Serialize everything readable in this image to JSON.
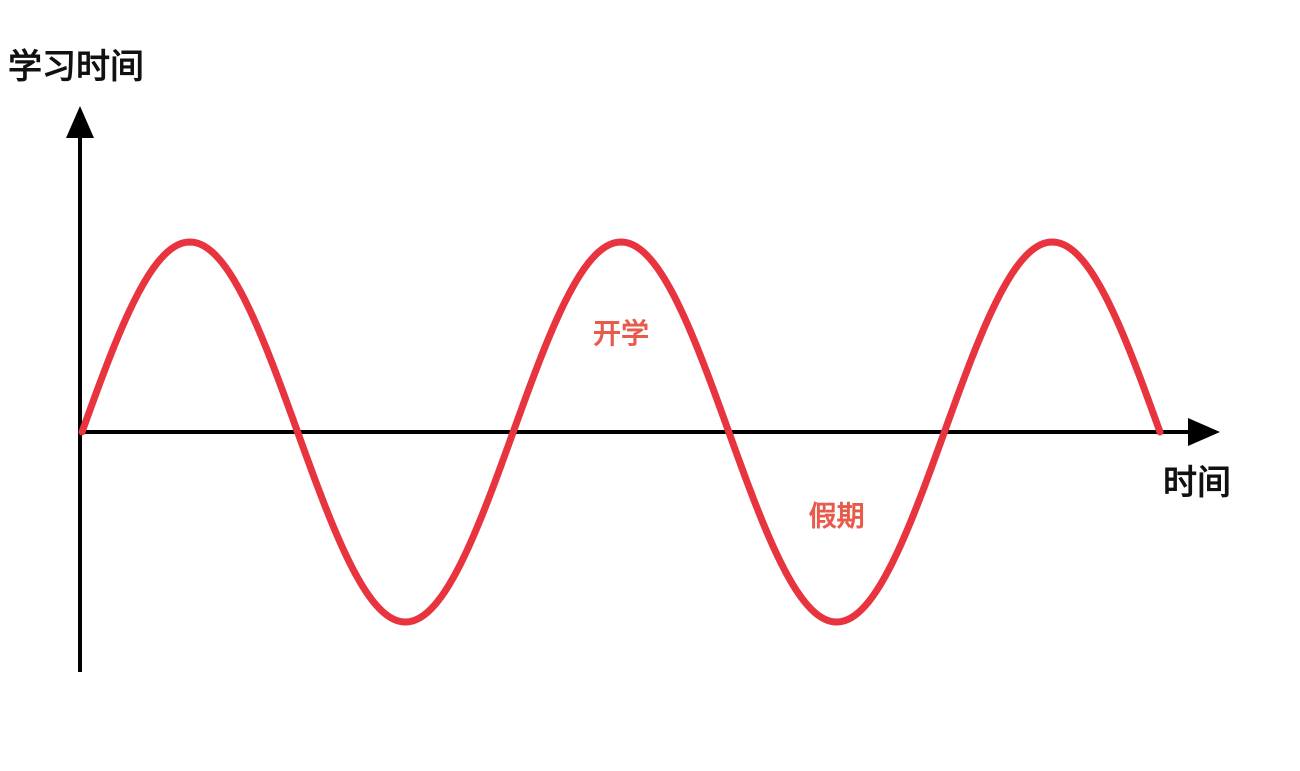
{
  "chart_data": {
    "type": "line",
    "ylabel": "学习时间",
    "xlabel": "时间",
    "grid": false,
    "legend": "none",
    "xlim": [
      0,
      2.5
    ],
    "ylim": [
      -1.15,
      1.2
    ],
    "series": [
      {
        "color": "#e8343f",
        "x": [
          0,
          0.25,
          0.5,
          0.75,
          1.0,
          1.25,
          1.5,
          1.75,
          2.0,
          2.25,
          2.5
        ],
        "y": [
          0,
          1,
          0,
          -1,
          0,
          1,
          0,
          -1,
          0,
          1,
          0
        ]
      }
    ],
    "annotations": [
      {
        "text": "开学",
        "x": 1.25,
        "y": 0.52,
        "color": "#e85a4a"
      },
      {
        "text": "假期",
        "x": 1.75,
        "y": -0.44,
        "color": "#e85a4a"
      }
    ]
  },
  "colors": {
    "axis": "#000000",
    "curve": "#e8343f",
    "annotation": "#e85a4a"
  }
}
